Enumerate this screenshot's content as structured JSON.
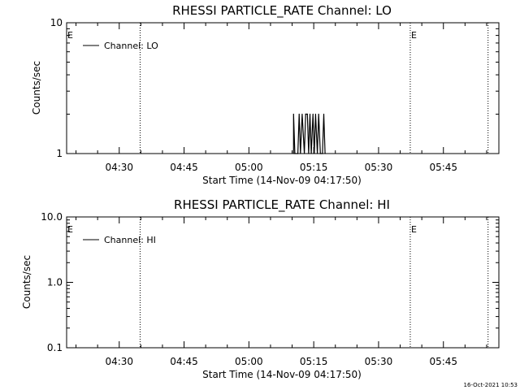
{
  "timestamp": "16-Oct-2021 10:53",
  "chart_data": [
    {
      "type": "line",
      "title": "RHESSI PARTICLE_RATE Channel: LO",
      "xlabel": "Start Time (14-Nov-09 04:17:50)",
      "ylabel": "Counts/sec",
      "x_ticks": [
        "04:30",
        "04:45",
        "05:00",
        "05:15",
        "05:30",
        "05:45"
      ],
      "y_scale": "log",
      "ylim": [
        1,
        10
      ],
      "y_ticks": [
        "1",
        "10"
      ],
      "xlim_minutes_from_start": [
        0,
        100
      ],
      "legend": {
        "label": "Channel: LO",
        "placement": "top-left"
      },
      "event_markers": [
        {
          "label": "E",
          "time_minutes_from_start": 0
        },
        {
          "label": "E",
          "time_minutes_from_start": 79.5
        }
      ],
      "dotted_lines_minutes_from_start": [
        17.0,
        79.5,
        97.5
      ],
      "series": [
        {
          "name": "Channel: LO",
          "values": [
            [
              52.5,
              1
            ],
            [
              52.5,
              2
            ],
            [
              52.8,
              1
            ],
            [
              53.5,
              1
            ],
            [
              53.8,
              2
            ],
            [
              54.1,
              1
            ],
            [
              54.5,
              2
            ],
            [
              55.0,
              1
            ],
            [
              55.3,
              2
            ],
            [
              55.7,
              2
            ],
            [
              56.0,
              1
            ],
            [
              56.3,
              2
            ],
            [
              56.6,
              1
            ],
            [
              57.0,
              2
            ],
            [
              57.3,
              1
            ],
            [
              57.6,
              2
            ],
            [
              58.0,
              1
            ],
            [
              58.3,
              2
            ],
            [
              58.7,
              1
            ],
            [
              59.2,
              1
            ],
            [
              59.5,
              2
            ],
            [
              59.8,
              1
            ]
          ]
        }
      ]
    },
    {
      "type": "line",
      "title": "RHESSI PARTICLE_RATE Channel: HI",
      "xlabel": "Start Time (14-Nov-09 04:17:50)",
      "ylabel": "Counts/sec",
      "x_ticks": [
        "04:30",
        "04:45",
        "05:00",
        "05:15",
        "05:30",
        "05:45"
      ],
      "y_scale": "log",
      "ylim": [
        0.1,
        10
      ],
      "y_ticks": [
        "0.1",
        "1.0",
        "10.0"
      ],
      "xlim_minutes_from_start": [
        0,
        100
      ],
      "legend": {
        "label": "Channel: HI",
        "placement": "top-left"
      },
      "event_markers": [
        {
          "label": "E",
          "time_minutes_from_start": 0
        },
        {
          "label": "E",
          "time_minutes_from_start": 79.5
        }
      ],
      "dotted_lines_minutes_from_start": [
        17.0,
        79.5,
        97.5
      ],
      "series": [
        {
          "name": "Channel: HI",
          "values": []
        }
      ]
    }
  ]
}
